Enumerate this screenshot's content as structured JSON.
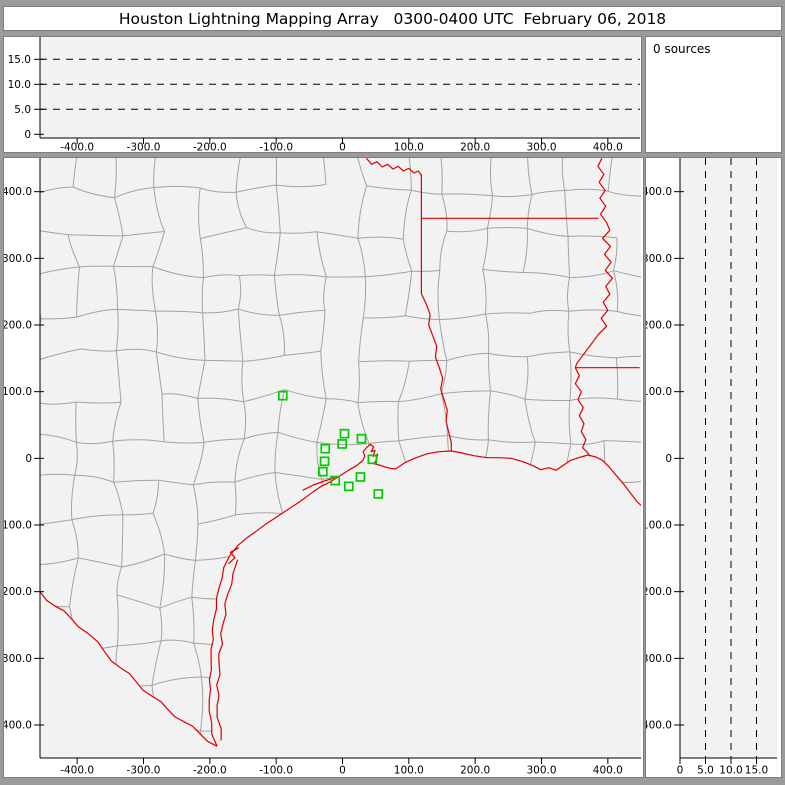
{
  "header": {
    "title": "Houston Lightning Mapping Array   0300-0400 UTC  February 06, 2018"
  },
  "panels": {
    "sources": {
      "label": "0 sources"
    },
    "top": {
      "description": "altitude (km) vs east-west distance (km), no sources plotted"
    },
    "main": {
      "description": "plan view map, east-west vs north-south distance (km)"
    },
    "right": {
      "description": "north-south distance (km) vs altitude (km), no sources plotted"
    }
  },
  "colors": {
    "window_gray": "#9b9b9b",
    "panel_white": "#ffffff",
    "plot_bg": "#f2f2f2",
    "axis_black": "#000000",
    "county_gray": "#a3a3a3",
    "state_red": "#dd0000",
    "station_green": "#00cc00"
  },
  "chart_data": {
    "type": "map",
    "title": "Houston Lightning Mapping Array plan-view with empty altitude cross-section panels",
    "ew_axis": {
      "range_km": [
        -456,
        450
      ],
      "ticks": [
        {
          "v": -400,
          "label": "-400.0"
        },
        {
          "v": -300,
          "label": "-300.0"
        },
        {
          "v": -200,
          "label": "-200.0"
        },
        {
          "v": -100,
          "label": "-100.0"
        },
        {
          "v": 0,
          "label": "0"
        },
        {
          "v": 100,
          "label": "100.0"
        },
        {
          "v": 200,
          "label": "200.0"
        },
        {
          "v": 300,
          "label": "300.0"
        },
        {
          "v": 400,
          "label": "400.0"
        }
      ]
    },
    "ns_axis": {
      "range_km": [
        -450,
        450
      ],
      "ticks": [
        {
          "v": 400,
          "label": "400.0"
        },
        {
          "v": 300,
          "label": "300.0"
        },
        {
          "v": 200,
          "label": "200.0"
        },
        {
          "v": 100,
          "label": "100.0"
        },
        {
          "v": 0,
          "label": "0"
        },
        {
          "v": -100,
          "label": "-100.0"
        },
        {
          "v": -200,
          "label": "-200.0"
        },
        {
          "v": -300,
          "label": "-300.0"
        },
        {
          "v": -400,
          "label": "-400.0"
        }
      ]
    },
    "alt_axis": {
      "range_km": [
        0,
        19.5
      ],
      "dashed_lines": [
        5,
        10,
        15
      ],
      "ticks_top": [
        {
          "v": 15,
          "label": "15.0"
        },
        {
          "v": 10,
          "label": "10.0"
        },
        {
          "v": 5,
          "label": "5.0"
        },
        {
          "v": 0,
          "label": "0"
        }
      ],
      "ticks_right": [
        {
          "v": 0,
          "label": "0"
        },
        {
          "v": 5,
          "label": "5.0"
        },
        {
          "v": 10,
          "label": "10.0"
        },
        {
          "v": 15,
          "label": "15.0"
        }
      ]
    },
    "stations_km": [
      [
        -90,
        94
      ],
      [
        3,
        37
      ],
      [
        28.6,
        29.5
      ],
      [
        -0.5,
        21.6
      ],
      [
        -26,
        14.5
      ],
      [
        -27,
        -4.5
      ],
      [
        45,
        -1.5
      ],
      [
        -29.6,
        -20
      ],
      [
        27,
        -28
      ],
      [
        -11,
        -33.4
      ],
      [
        9.5,
        -42
      ],
      [
        54,
        -53.4
      ]
    ],
    "geo_km": {
      "coast": [
        [
          -189,
          -432
        ],
        [
          -197,
          -414
        ],
        [
          -201,
          -362
        ],
        [
          -198,
          -302
        ],
        [
          -194,
          -242
        ],
        [
          -186,
          -194
        ],
        [
          -179,
          -164
        ],
        [
          -170,
          -146
        ],
        [
          -158,
          -131
        ],
        [
          -144,
          -119
        ],
        [
          -131,
          -110
        ],
        [
          -116,
          -99
        ],
        [
          -101,
          -89
        ],
        [
          -84,
          -78
        ],
        [
          -69,
          -68
        ],
        [
          -56,
          -59
        ],
        [
          -44,
          -50
        ],
        [
          -32,
          -42
        ],
        [
          -18,
          -35
        ],
        [
          -5,
          -27
        ],
        [
          9,
          -18
        ],
        [
          21,
          -11
        ],
        [
          30,
          -4
        ],
        [
          34,
          3
        ],
        [
          31,
          10
        ],
        [
          36,
          16
        ],
        [
          42,
          21
        ],
        [
          47,
          17
        ],
        [
          43,
          10
        ],
        [
          49,
          12
        ],
        [
          46,
          3
        ],
        [
          53,
          6
        ],
        [
          51,
          -3
        ],
        [
          47,
          -8
        ],
        [
          55,
          -10
        ],
        [
          64,
          -13
        ],
        [
          72,
          -15
        ],
        [
          80,
          -16
        ],
        [
          95,
          -6
        ],
        [
          111,
          1
        ],
        [
          128,
          7
        ],
        [
          146,
          10
        ],
        [
          164,
          11
        ],
        [
          180,
          8
        ],
        [
          198,
          4
        ],
        [
          218,
          1
        ],
        [
          236,
          1
        ],
        [
          254,
          0
        ],
        [
          272,
          -5
        ],
        [
          287,
          -11
        ],
        [
          299,
          -17
        ],
        [
          311,
          -14
        ],
        [
          322,
          -18
        ],
        [
          332,
          -11
        ],
        [
          344,
          -3
        ],
        [
          356,
          1
        ],
        [
          370,
          5
        ],
        [
          382,
          2
        ],
        [
          392,
          -3
        ],
        [
          403,
          -14
        ],
        [
          413,
          -26
        ],
        [
          424,
          -39
        ],
        [
          435,
          -53
        ],
        [
          444,
          -65
        ],
        [
          456,
          -76
        ]
      ],
      "rio_grande": [
        [
          -456,
          -200
        ],
        [
          -433,
          -222
        ],
        [
          -410,
          -239
        ],
        [
          -383,
          -263
        ],
        [
          -358,
          -291
        ],
        [
          -335,
          -314
        ],
        [
          -311,
          -335
        ],
        [
          -287,
          -357
        ],
        [
          -263,
          -377
        ],
        [
          -239,
          -395
        ],
        [
          -215,
          -413
        ],
        [
          -189,
          -432
        ]
      ],
      "laguna_madre": [
        [
          -183,
          -423
        ],
        [
          -189,
          -371
        ],
        [
          -186,
          -309
        ],
        [
          -180,
          -248
        ],
        [
          -173,
          -204
        ],
        [
          -165,
          -173
        ],
        [
          -158,
          -152
        ]
      ],
      "matagorda_bay": [
        [
          -60,
          -48
        ],
        [
          -44,
          -40
        ],
        [
          -27,
          -34
        ],
        [
          -12,
          -29
        ]
      ],
      "corpus_bay": [
        [
          -172,
          -158
        ],
        [
          -162,
          -149
        ],
        [
          -169,
          -141
        ],
        [
          -156,
          -134
        ]
      ],
      "red_river": [
        [
          36,
          450
        ],
        [
          44,
          441
        ],
        [
          52,
          445
        ],
        [
          60,
          437
        ],
        [
          68,
          441
        ],
        [
          76,
          434
        ],
        [
          84,
          438
        ],
        [
          92,
          431
        ],
        [
          100,
          435
        ],
        [
          108,
          428
        ],
        [
          114,
          431
        ],
        [
          119,
          425
        ],
        [
          119,
          421
        ]
      ],
      "tx_ar_border": [
        [
          119,
          421
        ],
        [
          119,
          247
        ]
      ],
      "ar_la_border": [
        [
          119,
          360
        ],
        [
          386,
          360
        ]
      ],
      "sabine_river": [
        [
          119,
          247
        ],
        [
          126,
          232
        ],
        [
          132,
          216
        ],
        [
          130,
          200
        ],
        [
          136,
          184
        ],
        [
          142,
          168
        ],
        [
          140,
          152
        ],
        [
          146,
          136
        ],
        [
          151,
          120
        ],
        [
          148,
          104
        ],
        [
          153,
          88
        ],
        [
          158,
          72
        ],
        [
          156,
          56
        ],
        [
          160,
          40
        ],
        [
          164,
          24
        ],
        [
          164,
          11
        ]
      ],
      "mississippi_river": [
        [
          391,
          450
        ],
        [
          385,
          438
        ],
        [
          394,
          426
        ],
        [
          387,
          414
        ],
        [
          396,
          402
        ],
        [
          388,
          390
        ],
        [
          397,
          378
        ],
        [
          389,
          366
        ],
        [
          398,
          354
        ],
        [
          403,
          342
        ],
        [
          392,
          330
        ],
        [
          404,
          318
        ],
        [
          395,
          306
        ],
        [
          405,
          294
        ],
        [
          396,
          282
        ],
        [
          407,
          270
        ],
        [
          397,
          258
        ],
        [
          403,
          246
        ],
        [
          393,
          234
        ],
        [
          400,
          222
        ],
        [
          390,
          210
        ],
        [
          398,
          198
        ],
        [
          386,
          186
        ],
        [
          377,
          174
        ],
        [
          368,
          162
        ],
        [
          359,
          150
        ],
        [
          353,
          142
        ],
        [
          351,
          136
        ]
      ],
      "la_ms_border": [
        [
          351,
          136
        ],
        [
          448,
          136
        ]
      ],
      "mississippi_lower": [
        [
          351,
          136
        ],
        [
          357,
          124
        ],
        [
          351,
          112
        ],
        [
          360,
          100
        ],
        [
          355,
          88
        ],
        [
          363,
          76
        ],
        [
          357,
          64
        ],
        [
          364,
          52
        ],
        [
          360,
          40
        ],
        [
          367,
          28
        ],
        [
          362,
          16
        ],
        [
          370,
          8
        ],
        [
          373,
          3
        ]
      ]
    },
    "county_mesh": {
      "seed": 12345,
      "nx": 16,
      "ny": 16,
      "jitter": 7,
      "skip": 0.08
    }
  }
}
